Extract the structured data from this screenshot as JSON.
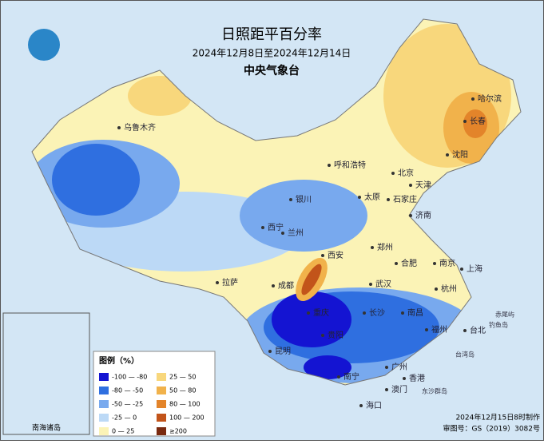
{
  "header": {
    "title": "日照距平百分率",
    "subtitle": "2024年12月8日至2024年12月14日",
    "agency": "中央气象台"
  },
  "legend": {
    "title": "图例（%）",
    "items": [
      {
        "label": "-100 — -80",
        "color": "#1414d2"
      },
      {
        "label": "-80 — -50",
        "color": "#2f6fe0"
      },
      {
        "label": "-50 — -25",
        "color": "#78a9ee"
      },
      {
        "label": "-25 — 0",
        "color": "#bcd9f6"
      },
      {
        "label": "0 — 25",
        "color": "#fbf3b6"
      },
      {
        "label": "25 — 50",
        "color": "#f8d77c"
      },
      {
        "label": "50 — 80",
        "color": "#f1b24b"
      },
      {
        "label": "80 — 100",
        "color": "#e3842a"
      },
      {
        "label": "100 — 200",
        "color": "#c2541a"
      },
      {
        "label": "≥200",
        "color": "#7a2a10"
      }
    ]
  },
  "cities": [
    "哈尔滨",
    "长春",
    "沈阳",
    "乌鲁木齐",
    "呼和浩特",
    "北京",
    "天津",
    "银川",
    "太原",
    "石家庄",
    "西宁",
    "兰州",
    "济南",
    "郑州",
    "西安",
    "合肥",
    "南京",
    "上海",
    "拉萨",
    "成都",
    "武汉",
    "杭州",
    "重庆",
    "长沙",
    "南昌",
    "贵阳",
    "福州",
    "台北",
    "昆明",
    "南宁",
    "广州",
    "香港",
    "澳门",
    "海口"
  ],
  "islands": [
    "赤尾屿",
    "钓鱼岛",
    "台湾岛",
    "东沙群岛"
  ],
  "inset": {
    "title": "南海诸岛"
  },
  "footer": {
    "made": "2024年12月15日8时制作",
    "approval": "审图号：GS（2019）3082号"
  }
}
